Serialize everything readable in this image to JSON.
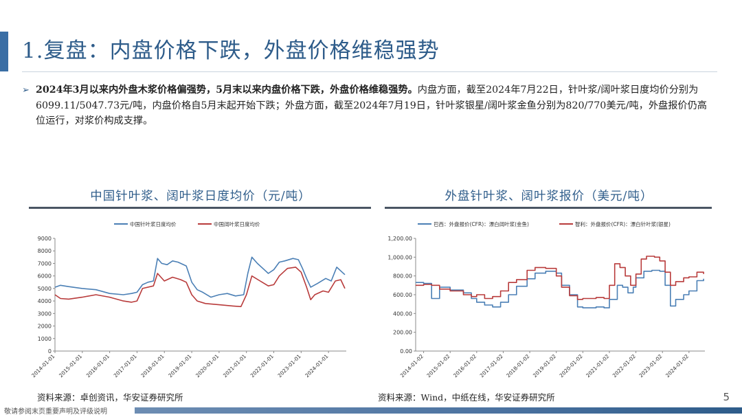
{
  "header": {
    "title": "1.复盘：内盘价格下跌，外盘价格维稳强势"
  },
  "summary": {
    "arrow": "➢",
    "bold": "2024年3月以来内外盘木浆价格偏强势，5月末以来内盘价格下跌，外盘价格维稳强势。",
    "text": "内盘方面，截至2024年7月22日，针叶浆/阔叶浆日度均价分别为6099.11/5047.73元/吨，内盘价格自5月末起开始下跌；外盘方面，截至2024年7月19日，针叶浆银星/阔叶浆金鱼分别为820/770美元/吨，外盘报价仍高位运行，对浆价构成支撑。"
  },
  "left_panel": {
    "source": "资料来源：卓创资讯，华安证券研究所"
  },
  "right_panel": {
    "source": "资料来源：Wind，中纸在线，华安证券研究所"
  },
  "page": {
    "number": "5"
  },
  "footer": {
    "disclaimer": "敬请参阅末页重要声明及评级说明"
  },
  "colors": {
    "blue": "#4a7fb5",
    "red": "#b83a3a",
    "accent": "#2e5c8a"
  },
  "chart_data": [
    {
      "type": "line",
      "title": "中国针叶浆、阔叶浆日度均价（元/吨）",
      "ylim": [
        0,
        9000
      ],
      "yticks": [
        "0",
        "1000",
        "2000",
        "3000",
        "4000",
        "5000",
        "6000",
        "7000",
        "8000",
        "9000"
      ],
      "xticks": [
        "2014-01-01",
        "2015-01-01",
        "2016-01-01",
        "2017-01-01",
        "2018-01-01",
        "2019-01-01",
        "2020-01-01",
        "2021-01-01",
        "2022-01-01",
        "2023-01-01",
        "2024-01-01"
      ],
      "xrange": [
        2014.0,
        2024.65
      ],
      "legend_position": "top",
      "series": [
        {
          "name": "中国针叶浆日度均价",
          "color": "#4a7fb5",
          "points": [
            [
              2014.0,
              5100
            ],
            [
              2014.2,
              5250
            ],
            [
              2014.5,
              5150
            ],
            [
              2015.0,
              5000
            ],
            [
              2015.5,
              4900
            ],
            [
              2016.0,
              4600
            ],
            [
              2016.5,
              4500
            ],
            [
              2016.8,
              4600
            ],
            [
              2017.0,
              4700
            ],
            [
              2017.2,
              5300
            ],
            [
              2017.4,
              5500
            ],
            [
              2017.6,
              5600
            ],
            [
              2017.75,
              7400
            ],
            [
              2017.9,
              7000
            ],
            [
              2018.1,
              6900
            ],
            [
              2018.3,
              7200
            ],
            [
              2018.5,
              7100
            ],
            [
              2018.8,
              6800
            ],
            [
              2019.0,
              5500
            ],
            [
              2019.2,
              4900
            ],
            [
              2019.4,
              4700
            ],
            [
              2019.7,
              4300
            ],
            [
              2020.0,
              4500
            ],
            [
              2020.3,
              4600
            ],
            [
              2020.6,
              4400
            ],
            [
              2020.9,
              4500
            ],
            [
              2021.05,
              6200
            ],
            [
              2021.2,
              7500
            ],
            [
              2021.4,
              7000
            ],
            [
              2021.6,
              6600
            ],
            [
              2021.8,
              6200
            ],
            [
              2022.0,
              6500
            ],
            [
              2022.2,
              7100
            ],
            [
              2022.4,
              7200
            ],
            [
              2022.7,
              7400
            ],
            [
              2022.9,
              7300
            ],
            [
              2023.05,
              6600
            ],
            [
              2023.2,
              5800
            ],
            [
              2023.35,
              5100
            ],
            [
              2023.6,
              5400
            ],
            [
              2023.9,
              5800
            ],
            [
              2024.1,
              5600
            ],
            [
              2024.3,
              6700
            ],
            [
              2024.5,
              6300
            ],
            [
              2024.6,
              6100
            ]
          ]
        },
        {
          "name": "中国阔叶浆日度均价",
          "color": "#b83a3a",
          "points": [
            [
              2014.0,
              4500
            ],
            [
              2014.2,
              4200
            ],
            [
              2014.5,
              4150
            ],
            [
              2015.0,
              4300
            ],
            [
              2015.5,
              4500
            ],
            [
              2016.0,
              4300
            ],
            [
              2016.5,
              4000
            ],
            [
              2016.8,
              3900
            ],
            [
              2017.0,
              4000
            ],
            [
              2017.2,
              5000
            ],
            [
              2017.6,
              5200
            ],
            [
              2017.75,
              6200
            ],
            [
              2018.0,
              5600
            ],
            [
              2018.3,
              5900
            ],
            [
              2018.6,
              5700
            ],
            [
              2018.8,
              5500
            ],
            [
              2019.0,
              4500
            ],
            [
              2019.2,
              4000
            ],
            [
              2019.5,
              3800
            ],
            [
              2020.0,
              3700
            ],
            [
              2020.5,
              3600
            ],
            [
              2020.8,
              3550
            ],
            [
              2021.0,
              4500
            ],
            [
              2021.2,
              6000
            ],
            [
              2021.5,
              5600
            ],
            [
              2021.8,
              5200
            ],
            [
              2022.0,
              5300
            ],
            [
              2022.2,
              6000
            ],
            [
              2022.5,
              6600
            ],
            [
              2022.8,
              6700
            ],
            [
              2023.0,
              6300
            ],
            [
              2023.2,
              5100
            ],
            [
              2023.35,
              4100
            ],
            [
              2023.5,
              4500
            ],
            [
              2023.8,
              4800
            ],
            [
              2024.0,
              4700
            ],
            [
              2024.25,
              5600
            ],
            [
              2024.45,
              5700
            ],
            [
              2024.6,
              5000
            ]
          ]
        }
      ]
    },
    {
      "type": "line",
      "title": "外盘针叶浆、阔叶浆报价（美元/吨）",
      "ylim": [
        0,
        1200
      ],
      "yticks": [
        "0.00",
        "200.00",
        "400.00",
        "600.00",
        "800.00",
        "1,000.00",
        "1,200.00"
      ],
      "xticks": [
        "2014-01-02",
        "2015-01-02",
        "2016-01-02",
        "2017-01-02",
        "2018-01-02",
        "2019-01-02",
        "2020-01-02",
        "2021-01-02",
        "2022-01-02",
        "2023-01-02",
        "2024-01-02"
      ],
      "xrange": [
        2013.7,
        2024.6
      ],
      "legend_position": "top",
      "series": [
        {
          "name": "巴西：外盘报价(CFR)：漂白阔叶浆(金鱼)",
          "color": "#4a7fb5",
          "step": true,
          "points": [
            [
              2013.7,
              730
            ],
            [
              2014.0,
              720
            ],
            [
              2014.3,
              560
            ],
            [
              2014.6,
              680
            ],
            [
              2015.0,
              650
            ],
            [
              2015.5,
              620
            ],
            [
              2015.8,
              560
            ],
            [
              2016.0,
              520
            ],
            [
              2016.3,
              490
            ],
            [
              2016.6,
              470
            ],
            [
              2016.9,
              520
            ],
            [
              2017.2,
              600
            ],
            [
              2017.5,
              690
            ],
            [
              2017.9,
              770
            ],
            [
              2018.2,
              830
            ],
            [
              2018.6,
              850
            ],
            [
              2019.0,
              830
            ],
            [
              2019.2,
              700
            ],
            [
              2019.5,
              600
            ],
            [
              2019.8,
              470
            ],
            [
              2020.0,
              460
            ],
            [
              2020.5,
              470
            ],
            [
              2020.8,
              460
            ],
            [
              2021.0,
              550
            ],
            [
              2021.3,
              700
            ],
            [
              2021.5,
              680
            ],
            [
              2021.7,
              620
            ],
            [
              2021.9,
              680
            ],
            [
              2022.0,
              780
            ],
            [
              2022.3,
              850
            ],
            [
              2022.6,
              860
            ],
            [
              2022.9,
              850
            ],
            [
              2023.1,
              700
            ],
            [
              2023.3,
              480
            ],
            [
              2023.5,
              550
            ],
            [
              2023.8,
              600
            ],
            [
              2024.0,
              640
            ],
            [
              2024.3,
              750
            ],
            [
              2024.55,
              770
            ]
          ]
        },
        {
          "name": "智利：外盘报价(CFR)：漂白针叶浆(银星)",
          "color": "#b83a3a",
          "step": true,
          "points": [
            [
              2013.7,
              700
            ],
            [
              2014.0,
              710
            ],
            [
              2014.3,
              700
            ],
            [
              2014.6,
              660
            ],
            [
              2015.0,
              640
            ],
            [
              2015.5,
              600
            ],
            [
              2015.8,
              580
            ],
            [
              2016.0,
              600
            ],
            [
              2016.3,
              560
            ],
            [
              2016.6,
              580
            ],
            [
              2016.9,
              640
            ],
            [
              2017.2,
              730
            ],
            [
              2017.5,
              760
            ],
            [
              2017.9,
              860
            ],
            [
              2018.2,
              890
            ],
            [
              2018.6,
              880
            ],
            [
              2019.0,
              800
            ],
            [
              2019.2,
              680
            ],
            [
              2019.5,
              590
            ],
            [
              2019.8,
              550
            ],
            [
              2020.0,
              560
            ],
            [
              2020.5,
              570
            ],
            [
              2020.8,
              560
            ],
            [
              2021.0,
              700
            ],
            [
              2021.2,
              930
            ],
            [
              2021.4,
              890
            ],
            [
              2021.6,
              800
            ],
            [
              2021.8,
              700
            ],
            [
              2022.0,
              820
            ],
            [
              2022.2,
              980
            ],
            [
              2022.4,
              1010
            ],
            [
              2022.7,
              1000
            ],
            [
              2022.9,
              960
            ],
            [
              2023.1,
              840
            ],
            [
              2023.3,
              700
            ],
            [
              2023.5,
              740
            ],
            [
              2023.8,
              780
            ],
            [
              2024.0,
              790
            ],
            [
              2024.3,
              840
            ],
            [
              2024.55,
              820
            ]
          ]
        }
      ]
    }
  ]
}
